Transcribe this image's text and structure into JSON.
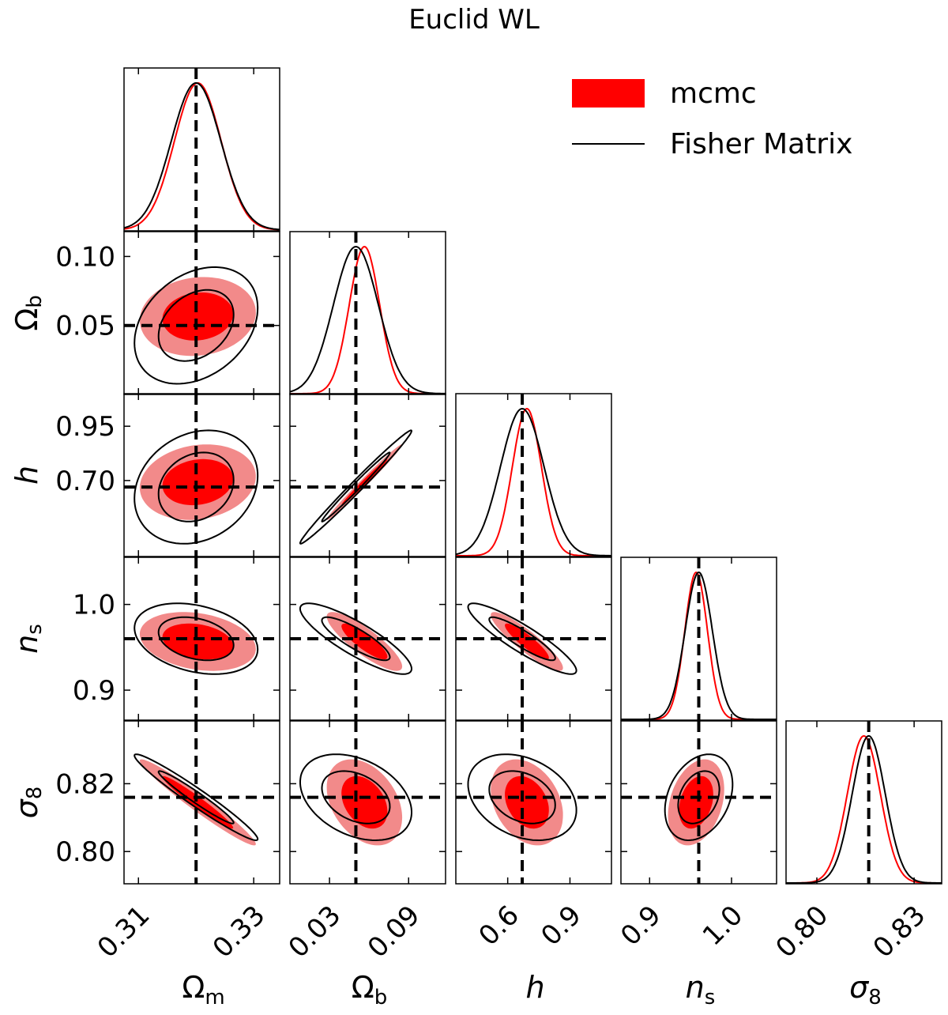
{
  "chart_data": {
    "type": "corner",
    "title": "Euclid WL",
    "legend": {
      "placement": "top-right",
      "entries": [
        {
          "label": "mcmc",
          "style": "filled",
          "color": "#ff0000"
        },
        {
          "label": "Fisher Matrix",
          "style": "line",
          "color": "#000000"
        }
      ]
    },
    "parameters": [
      {
        "key": "Om",
        "label": "Ω",
        "sub": "m",
        "italic": false,
        "fiducial": 0.32,
        "range": [
          0.3075,
          0.3345
        ],
        "ticks": [
          0.31,
          0.33
        ],
        "tick_labels": [
          "0.31",
          "0.33"
        ],
        "mcmc_mean": 0.3203,
        "mcmc_sigma": 0.00405,
        "fisher_sigma": 0.0043
      },
      {
        "key": "Ob",
        "label": "Ω",
        "sub": "b",
        "italic": false,
        "fiducial": 0.05,
        "range": [
          0.0,
          0.118
        ],
        "ticks": [
          0.03,
          0.09
        ],
        "tick_labels": [
          "0.03",
          "0.09"
        ],
        "y_ticks": [
          0.05,
          0.1
        ],
        "y_tick_labels": [
          "0.05",
          "0.10"
        ],
        "mcmc_mean": 0.0565,
        "mcmc_sigma": 0.0115,
        "fisher_sigma": 0.017
      },
      {
        "key": "h",
        "label": "h",
        "sub": "",
        "italic": true,
        "fiducial": 0.67,
        "range": [
          0.35,
          1.1
        ],
        "ticks": [
          0.6,
          0.9
        ],
        "tick_labels": [
          "0.6",
          "0.9"
        ],
        "y_ticks": [
          0.7,
          0.95
        ],
        "y_tick_labels": [
          "0.70",
          "0.95"
        ],
        "mcmc_mean": 0.6924,
        "mcmc_sigma": 0.07,
        "fisher_sigma": 0.105
      },
      {
        "key": "ns",
        "label": "n",
        "sub": "s",
        "italic": true,
        "fiducial": 0.96,
        "range": [
          0.865,
          1.055
        ],
        "ticks": [
          0.9,
          1.0
        ],
        "tick_labels": [
          "0.9",
          "1.0"
        ],
        "y_ticks": [
          0.9,
          1.0
        ],
        "y_tick_labels": [
          "0.9",
          "1.0"
        ],
        "mcmc_mean": 0.9568,
        "mcmc_sigma": 0.0138,
        "fisher_sigma": 0.0166
      },
      {
        "key": "s8",
        "label": "σ",
        "sub": "8",
        "italic": true,
        "fiducial": 0.816,
        "range": [
          0.7905,
          0.8385
        ],
        "ticks": [
          0.8,
          0.83
        ],
        "tick_labels": [
          "0.80",
          "0.83"
        ],
        "y_ticks": [
          0.8,
          0.82
        ],
        "y_tick_labels": [
          "0.80",
          "0.82"
        ],
        "mcmc_mean": 0.8145,
        "mcmc_sigma": 0.0051,
        "fisher_sigma": 0.0051
      }
    ],
    "correlations": [
      {
        "pair": [
          "Ob",
          "Om"
        ],
        "mcmc": 0.1,
        "fisher": 0.3
      },
      {
        "pair": [
          "h",
          "Om"
        ],
        "mcmc": 0.15,
        "fisher": 0.2
      },
      {
        "pair": [
          "h",
          "Ob"
        ],
        "mcmc": 0.99,
        "fisher": 0.99
      },
      {
        "pair": [
          "ns",
          "Om"
        ],
        "mcmc": -0.25,
        "fisher": -0.3
      },
      {
        "pair": [
          "ns",
          "Ob"
        ],
        "mcmc": -0.85,
        "fisher": -0.85
      },
      {
        "pair": [
          "ns",
          "h"
        ],
        "mcmc": -0.9,
        "fisher": -0.9
      },
      {
        "pair": [
          "s8",
          "Om"
        ],
        "mcmc": -0.97,
        "fisher": -0.97
      },
      {
        "pair": [
          "s8",
          "Ob"
        ],
        "mcmc": -0.35,
        "fisher": -0.35
      },
      {
        "pair": [
          "s8",
          "h"
        ],
        "mcmc": -0.3,
        "fisher": -0.3
      },
      {
        "pair": [
          "s8",
          "ns"
        ],
        "mcmc": 0.3,
        "fisher": 0.3
      }
    ],
    "contour_levels_sigma": [
      1,
      2
    ],
    "fiducial_line_style": "black dashed",
    "grid": false
  }
}
